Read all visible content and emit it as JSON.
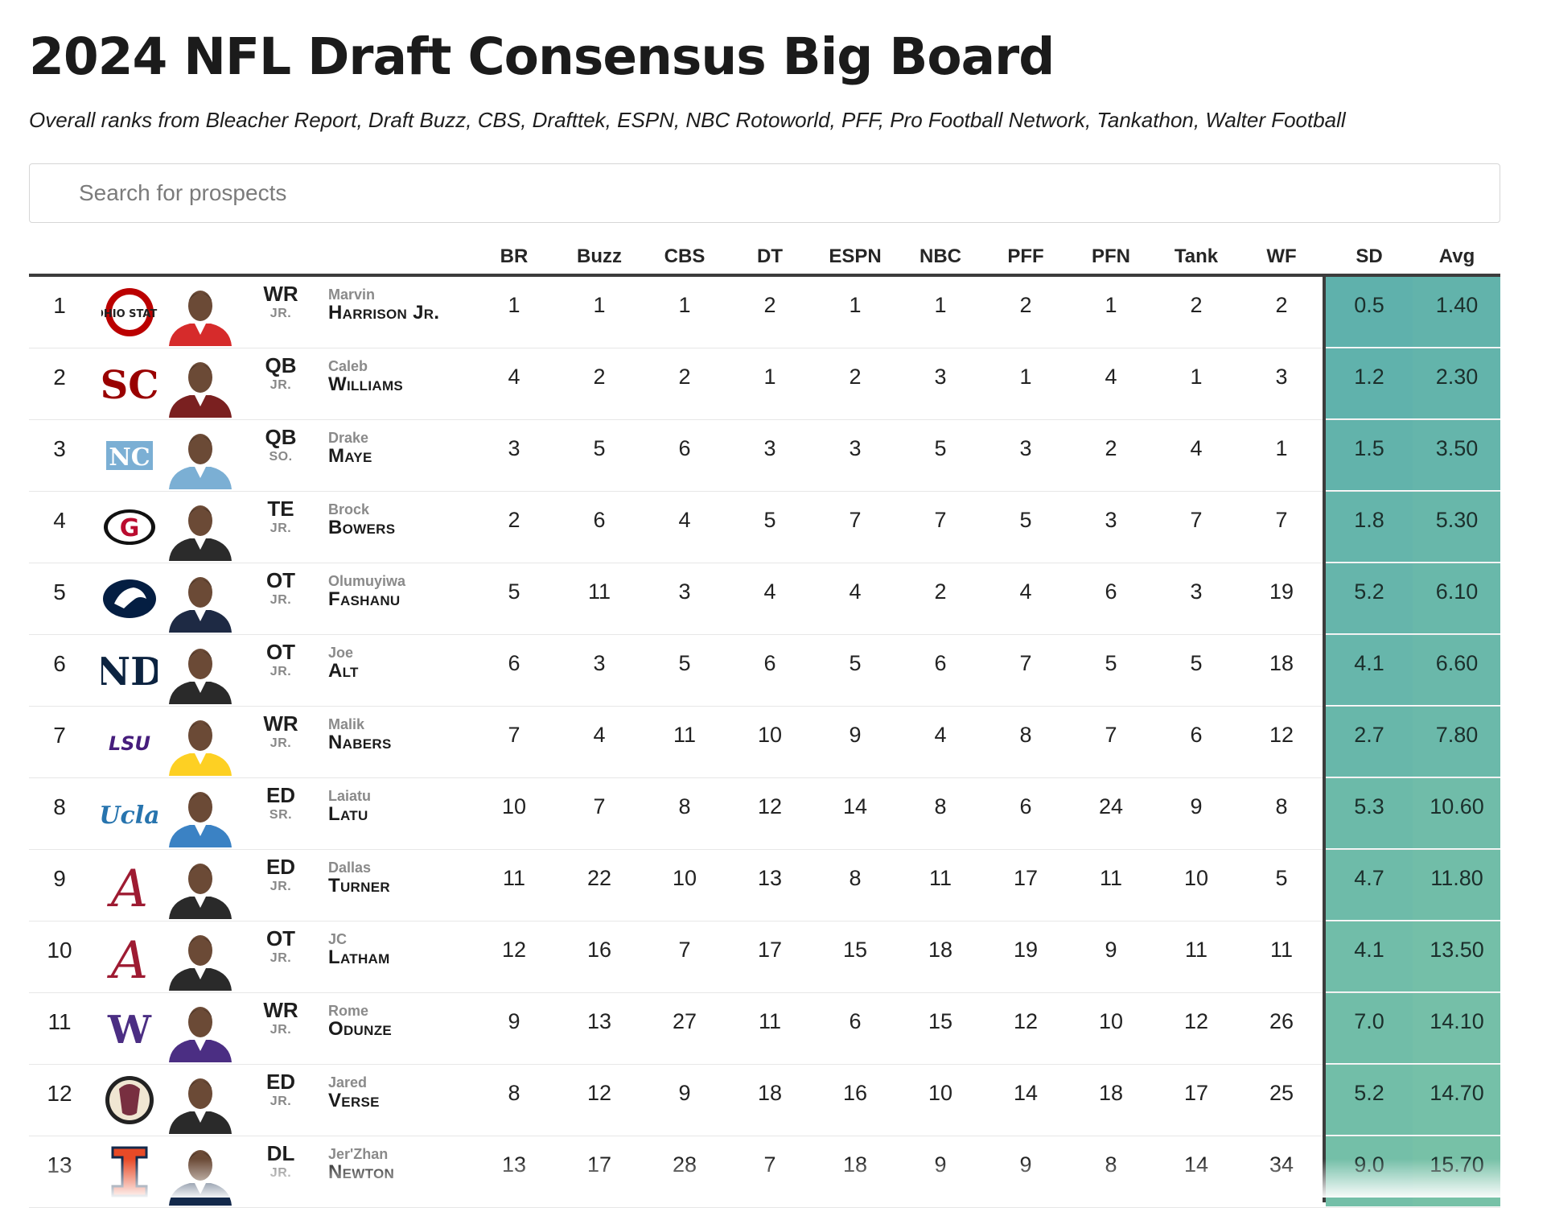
{
  "page": {
    "title": "2024 NFL Draft Consensus Big Board",
    "subtitle": "Overall ranks from Bleacher Report, Draft Buzz, CBS, Drafttek, ESPN, NBC Rotoworld, PFF, Pro Football Network, Tankathon, Walter Football"
  },
  "search": {
    "placeholder": "Search for prospects",
    "value": ""
  },
  "columns": [
    "BR",
    "Buzz",
    "CBS",
    "DT",
    "ESPN",
    "NBC",
    "PFF",
    "PFN",
    "Tank",
    "WF",
    "SD",
    "Avg"
  ],
  "colors": {
    "sd_avg_low": "#5fb1ac",
    "sd_avg_high": "#79c2a7",
    "header_rule": "#3c3c3c"
  },
  "rows": [
    {
      "rank": "1",
      "school_logo": "ohio-state-logo",
      "logo_text": "OHIO STATE",
      "logo_color": "#bb0000",
      "jersey": "#d62b2b",
      "pos": "WR",
      "year": "JR.",
      "first": "Marvin",
      "last": "Harrison Jr.",
      "ranks": [
        "1",
        "1",
        "1",
        "2",
        "1",
        "1",
        "2",
        "1",
        "2",
        "2"
      ],
      "sd": "0.5",
      "avg": "1.40"
    },
    {
      "rank": "2",
      "school_logo": "usc-logo",
      "logo_text": "SC",
      "logo_color": "#990000",
      "jersey": "#7a2020",
      "pos": "QB",
      "year": "JR.",
      "first": "Caleb",
      "last": "Williams",
      "ranks": [
        "4",
        "2",
        "2",
        "1",
        "2",
        "3",
        "1",
        "4",
        "1",
        "3"
      ],
      "sd": "1.2",
      "avg": "2.30"
    },
    {
      "rank": "3",
      "school_logo": "unc-logo",
      "logo_text": "NC",
      "logo_color": "#7bafd4",
      "jersey": "#7bafd4",
      "pos": "QB",
      "year": "SO.",
      "first": "Drake",
      "last": "Maye",
      "ranks": [
        "3",
        "5",
        "6",
        "3",
        "3",
        "5",
        "3",
        "2",
        "4",
        "1"
      ],
      "sd": "1.5",
      "avg": "3.50"
    },
    {
      "rank": "4",
      "school_logo": "georgia-logo",
      "logo_text": "G",
      "logo_color": "#ba0c2f",
      "jersey": "#2b2b2b",
      "pos": "TE",
      "year": "JR.",
      "first": "Brock",
      "last": "Bowers",
      "ranks": [
        "2",
        "6",
        "4",
        "5",
        "7",
        "7",
        "5",
        "3",
        "7",
        "7"
      ],
      "sd": "1.8",
      "avg": "5.30"
    },
    {
      "rank": "5",
      "school_logo": "penn-state-logo",
      "logo_text": "PSU",
      "logo_color": "#041e42",
      "jersey": "#1e2a44",
      "pos": "OT",
      "year": "JR.",
      "first": "Olumuyiwa",
      "last": "Fashanu",
      "ranks": [
        "5",
        "11",
        "3",
        "4",
        "4",
        "2",
        "4",
        "6",
        "3",
        "19"
      ],
      "sd": "5.2",
      "avg": "6.10"
    },
    {
      "rank": "6",
      "school_logo": "notre-dame-logo",
      "logo_text": "ND",
      "logo_color": "#0c2340",
      "jersey": "#2a2a2a",
      "pos": "OT",
      "year": "JR.",
      "first": "Joe",
      "last": "Alt",
      "ranks": [
        "6",
        "3",
        "5",
        "6",
        "5",
        "6",
        "7",
        "5",
        "5",
        "18"
      ],
      "sd": "4.1",
      "avg": "6.60"
    },
    {
      "rank": "7",
      "school_logo": "lsu-logo",
      "logo_text": "LSU",
      "logo_color": "#461d7c",
      "jersey": "#fdd023",
      "pos": "WR",
      "year": "JR.",
      "first": "Malik",
      "last": "Nabers",
      "ranks": [
        "7",
        "4",
        "11",
        "10",
        "9",
        "4",
        "8",
        "7",
        "6",
        "12"
      ],
      "sd": "2.7",
      "avg": "7.80"
    },
    {
      "rank": "8",
      "school_logo": "ucla-logo",
      "logo_text": "Ucla",
      "logo_color": "#2774ae",
      "jersey": "#3b82c4",
      "pos": "ED",
      "year": "SR.",
      "first": "Laiatu",
      "last": "Latu",
      "ranks": [
        "10",
        "7",
        "8",
        "12",
        "14",
        "8",
        "6",
        "24",
        "9",
        "8"
      ],
      "sd": "5.3",
      "avg": "10.60"
    },
    {
      "rank": "9",
      "school_logo": "alabama-logo",
      "logo_text": "A",
      "logo_color": "#9e1b32",
      "jersey": "#2a2a2a",
      "pos": "ED",
      "year": "JR.",
      "first": "Dallas",
      "last": "Turner",
      "ranks": [
        "11",
        "22",
        "10",
        "13",
        "8",
        "11",
        "17",
        "11",
        "10",
        "5"
      ],
      "sd": "4.7",
      "avg": "11.80"
    },
    {
      "rank": "10",
      "school_logo": "alabama-logo",
      "logo_text": "A",
      "logo_color": "#9e1b32",
      "jersey": "#2a2a2a",
      "pos": "OT",
      "year": "JR.",
      "first": "JC",
      "last": "Latham",
      "ranks": [
        "12",
        "16",
        "7",
        "17",
        "15",
        "18",
        "19",
        "9",
        "11",
        "11"
      ],
      "sd": "4.1",
      "avg": "13.50"
    },
    {
      "rank": "11",
      "school_logo": "washington-logo",
      "logo_text": "W",
      "logo_color": "#4b2e83",
      "jersey": "#4b2e83",
      "pos": "WR",
      "year": "JR.",
      "first": "Rome",
      "last": "Odunze",
      "ranks": [
        "9",
        "13",
        "27",
        "11",
        "6",
        "15",
        "12",
        "10",
        "12",
        "26"
      ],
      "sd": "7.0",
      "avg": "14.10"
    },
    {
      "rank": "12",
      "school_logo": "florida-state-logo",
      "logo_text": "FSU",
      "logo_color": "#782f40",
      "jersey": "#2a2a2a",
      "pos": "ED",
      "year": "JR.",
      "first": "Jared",
      "last": "Verse",
      "ranks": [
        "8",
        "12",
        "9",
        "18",
        "16",
        "10",
        "14",
        "18",
        "17",
        "25"
      ],
      "sd": "5.2",
      "avg": "14.70"
    },
    {
      "rank": "13",
      "school_logo": "illinois-logo",
      "logo_text": "I",
      "logo_color": "#e84a27",
      "jersey": "#13294b",
      "pos": "DL",
      "year": "JR.",
      "first": "Jer'Zhan",
      "last": "Newton",
      "ranks": [
        "13",
        "17",
        "28",
        "7",
        "18",
        "9",
        "9",
        "8",
        "14",
        "34"
      ],
      "sd": "9.0",
      "avg": "15.70"
    }
  ]
}
